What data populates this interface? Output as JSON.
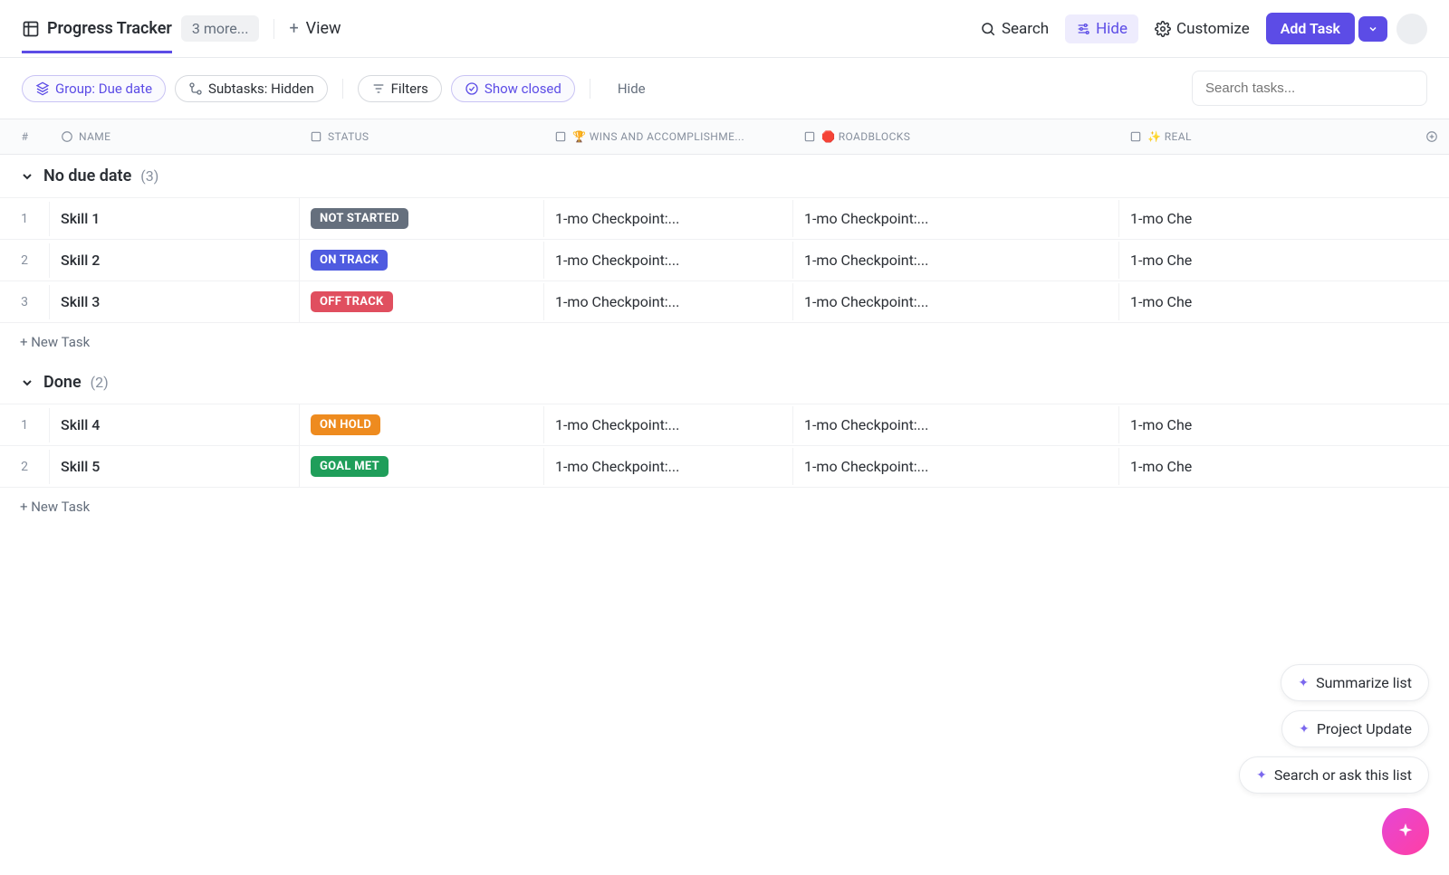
{
  "header": {
    "title": "Progress Tracker",
    "more_tabs": "3 more...",
    "view_label": "View",
    "search": "Search",
    "hide": "Hide",
    "customize": "Customize",
    "add_task": "Add Task"
  },
  "filters": {
    "group": "Group: Due date",
    "subtasks": "Subtasks: Hidden",
    "filters": "Filters",
    "show_closed": "Show closed",
    "hide": "Hide",
    "search_placeholder": "Search tasks..."
  },
  "columns": {
    "num": "#",
    "name": "NAME",
    "status": "STATUS",
    "wins": "🏆 WINS AND ACCOMPLISHME...",
    "roadblocks": "🛑 ROADBLOCKS",
    "real": "✨ REAL"
  },
  "groups": [
    {
      "title": "No due date",
      "count": "(3)",
      "rows": [
        {
          "num": "1",
          "name": "Skill 1",
          "status": "NOT STARTED",
          "status_color": "#656f7d",
          "wins": "1-mo Checkpoint:...",
          "road": "1-mo Checkpoint:...",
          "real": "1-mo Che"
        },
        {
          "num": "2",
          "name": "Skill 2",
          "status": "ON TRACK",
          "status_color": "#4f5be0",
          "wins": "1-mo Checkpoint:...",
          "road": "1-mo Checkpoint:...",
          "real": "1-mo Che"
        },
        {
          "num": "3",
          "name": "Skill 3",
          "status": "OFF TRACK",
          "status_color": "#e04f5f",
          "wins": "1-mo Checkpoint:...",
          "road": "1-mo Checkpoint:...",
          "real": "1-mo Che"
        }
      ]
    },
    {
      "title": "Done",
      "count": "(2)",
      "rows": [
        {
          "num": "1",
          "name": "Skill 4",
          "status": "ON HOLD",
          "status_color": "#ee8b1f",
          "wins": "1-mo Checkpoint:...",
          "road": "1-mo Checkpoint:...",
          "real": "1-mo Che"
        },
        {
          "num": "2",
          "name": "Skill 5",
          "status": "GOAL MET",
          "status_color": "#1f9e5a",
          "wins": "1-mo Checkpoint:...",
          "road": "1-mo Checkpoint:...",
          "real": "1-mo Che"
        }
      ]
    }
  ],
  "new_task": "+ New Task",
  "ai": {
    "summarize": "Summarize list",
    "project_update": "Project Update",
    "search_ask": "Search or ask this list"
  }
}
